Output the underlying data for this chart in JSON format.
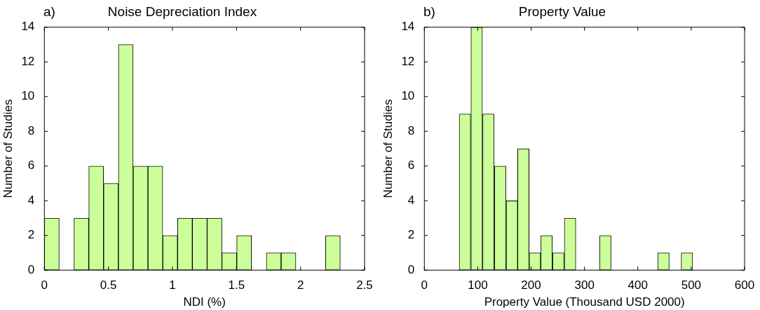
{
  "chart_data": [
    {
      "type": "histogram",
      "title": "Noise Depreciation Index",
      "annotations": [
        "a)"
      ],
      "xlabel": "NDI (%)",
      "ylabel": "Number of Studies",
      "bins": [
        0,
        0.116,
        0.231,
        0.347,
        0.462,
        0.578,
        0.693,
        0.809,
        0.924,
        1.04,
        1.155,
        1.271,
        1.386,
        1.502,
        1.617,
        1.733,
        1.848,
        1.964,
        2.079,
        2.195,
        2.31
      ],
      "values": [
        3,
        0,
        3,
        6,
        5,
        13,
        6,
        6,
        2,
        3,
        3,
        3,
        1,
        2,
        0,
        1,
        1,
        0,
        0,
        2
      ],
      "color": "#ccff99",
      "xlim": [
        0,
        2.5
      ],
      "xticks": [
        0,
        0.5,
        1,
        1.5,
        2,
        2.5
      ],
      "ylim": [
        0,
        14
      ],
      "yticks": [
        0,
        2,
        4,
        6,
        8,
        10,
        12,
        14
      ]
    },
    {
      "type": "histogram",
      "title": "Property Value",
      "annotations": [
        "b)"
      ],
      "xlabel": "Property Value (Thousand USD 2000)",
      "ylabel": "Number of Studies",
      "bins": [
        65,
        87,
        109,
        131,
        153,
        175,
        196,
        218,
        240,
        262,
        284,
        306,
        328,
        350,
        372,
        394,
        415,
        437,
        459,
        481,
        503
      ],
      "values": [
        9,
        14,
        9,
        6,
        4,
        7,
        1,
        2,
        1,
        3,
        0,
        0,
        2,
        0,
        0,
        0,
        0,
        1,
        0,
        1
      ],
      "color": "#ccff99",
      "xlim": [
        0,
        600
      ],
      "xticks": [
        0,
        100,
        200,
        300,
        400,
        500,
        600
      ],
      "ylim": [
        0,
        14
      ],
      "yticks": [
        0,
        2,
        4,
        6,
        8,
        10,
        12,
        14
      ]
    }
  ]
}
